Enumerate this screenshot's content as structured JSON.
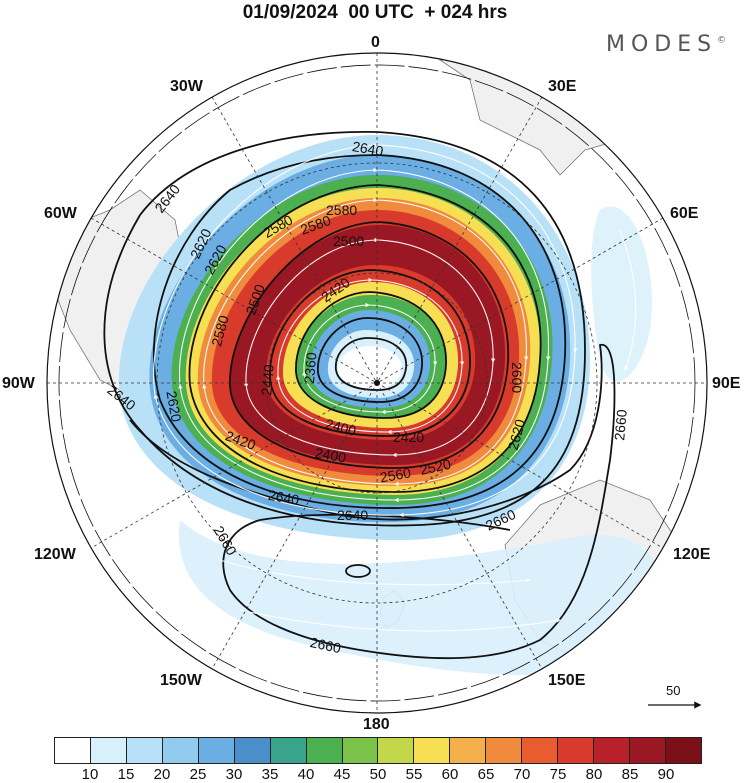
{
  "title": "01/09/2024  00 UTC  + 024 hrs",
  "logo": "MODES",
  "logo_mark": "©",
  "longitude_labels": {
    "lon_0": "0",
    "lon_30e": "30E",
    "lon_60e": "60E",
    "lon_90e": "90E",
    "lon_120e": "120E",
    "lon_150e": "150E",
    "lon_180": "180",
    "lon_150w": "150W",
    "lon_120w": "120W",
    "lon_90w": "90W",
    "lon_60w": "60W",
    "lon_30w": "30W"
  },
  "contour_labels": [
    "2640",
    "2640",
    "2640",
    "2620",
    "2580",
    "2580",
    "2580",
    "2500",
    "2500",
    "2420",
    "2420",
    "2360",
    "2440",
    "2400",
    "2400",
    "2420",
    "2620",
    "2600",
    "2660",
    "2660",
    "2660",
    "2660",
    "2640",
    "2640",
    "2620",
    "2560",
    "2520",
    "2580",
    "2620"
  ],
  "reference_vector": {
    "value": "50",
    "label": "50"
  },
  "colorbar": {
    "ticks": [
      "10",
      "15",
      "20",
      "25",
      "30",
      "35",
      "40",
      "45",
      "50",
      "55",
      "60",
      "65",
      "70",
      "75",
      "80",
      "85",
      "90"
    ],
    "colors": [
      "#ffffff",
      "#d8f0fc",
      "#b8e1f7",
      "#93cbef",
      "#6baee3",
      "#4b8fca",
      "#3aa38c",
      "#4caf50",
      "#7bc24a",
      "#c2d84a",
      "#f6df52",
      "#f4b04a",
      "#f08a3c",
      "#e85c30",
      "#d83a2c",
      "#b8202a",
      "#9a1823",
      "#7c1018"
    ]
  }
}
